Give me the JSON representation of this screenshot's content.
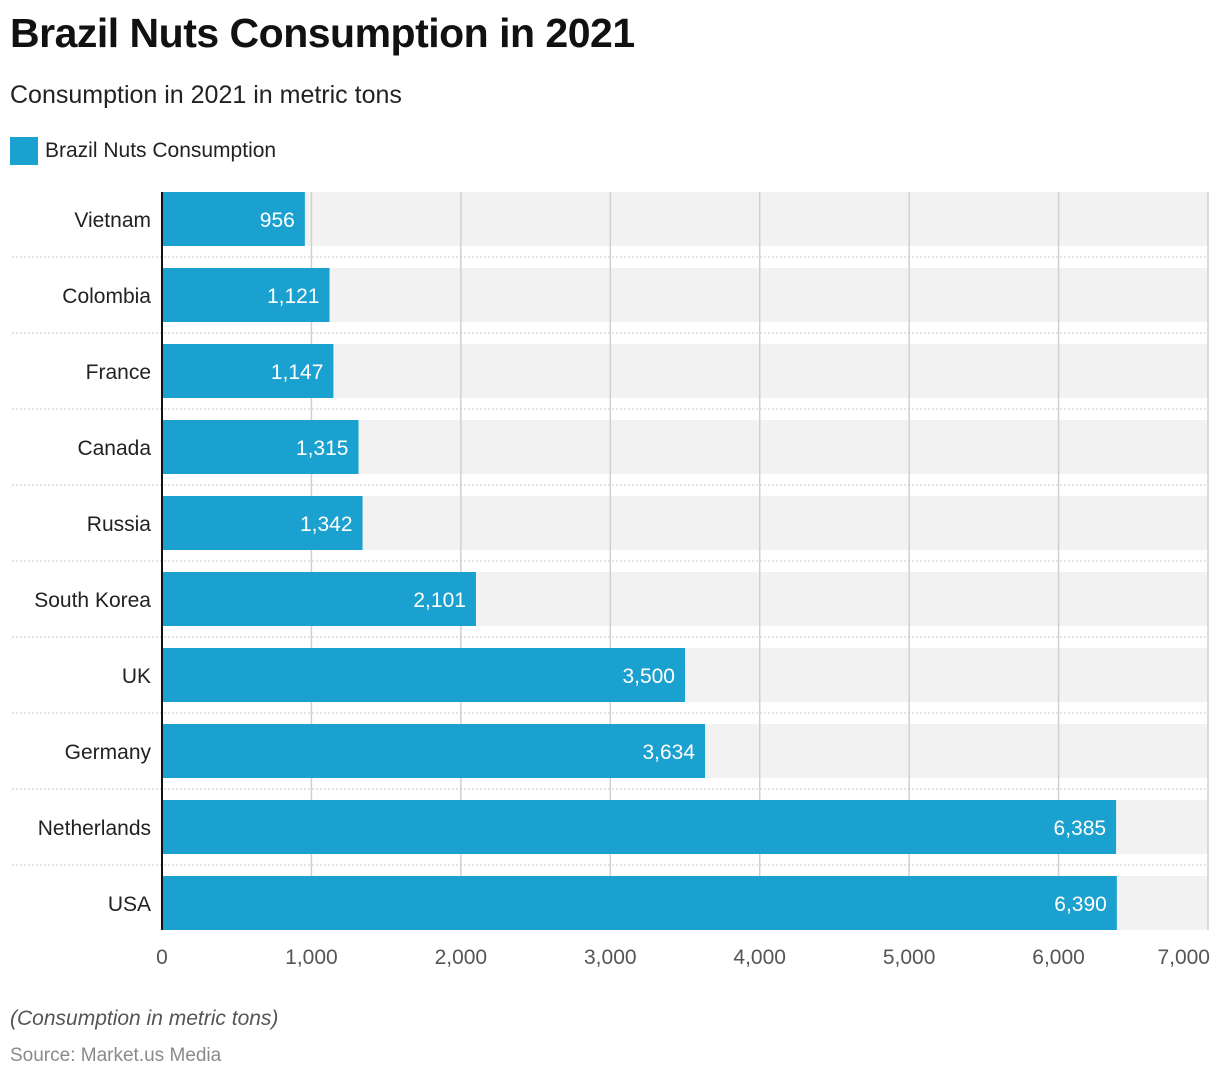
{
  "header": {
    "title": "Brazil Nuts Consumption in 2021",
    "subtitle": "Consumption in 2021 in metric tons"
  },
  "footer": {
    "note": "(Consumption in metric tons)",
    "source": "Source: Market.us Media"
  },
  "colors": {
    "bar": "#1ba1cf",
    "track": "#f2f2f2",
    "grid": "#d0d0d0",
    "axis": "#111111",
    "label_inside": "#ffffff"
  },
  "chart_data": {
    "type": "bar",
    "orientation": "horizontal",
    "title": "Brazil Nuts Consumption in 2021",
    "subtitle": "Consumption in 2021 in metric tons",
    "xlabel": "",
    "ylabel": "",
    "categories": [
      "Vietnam",
      "Colombia",
      "France",
      "Canada",
      "Russia",
      "South Korea",
      "UK",
      "Germany",
      "Netherlands",
      "USA"
    ],
    "series": [
      {
        "name": "Brazil Nuts Consumption",
        "values": [
          956,
          1121,
          1147,
          1315,
          1342,
          2101,
          3500,
          3634,
          6385,
          6390
        ],
        "labels": [
          "956",
          "1,121",
          "1,147",
          "1,315",
          "1,342",
          "2,101",
          "3,500",
          "3,634",
          "6,385",
          "6,390"
        ]
      }
    ],
    "xlim": [
      0,
      7000
    ],
    "xticks": [
      0,
      1000,
      2000,
      3000,
      4000,
      5000,
      6000,
      7000
    ],
    "xtick_labels": [
      "0",
      "1,000",
      "2,000",
      "3,000",
      "4,000",
      "5,000",
      "6,000",
      "7,000"
    ],
    "grid": true,
    "legend": {
      "position": "top-left",
      "entries": [
        "Brazil Nuts Consumption"
      ]
    }
  }
}
